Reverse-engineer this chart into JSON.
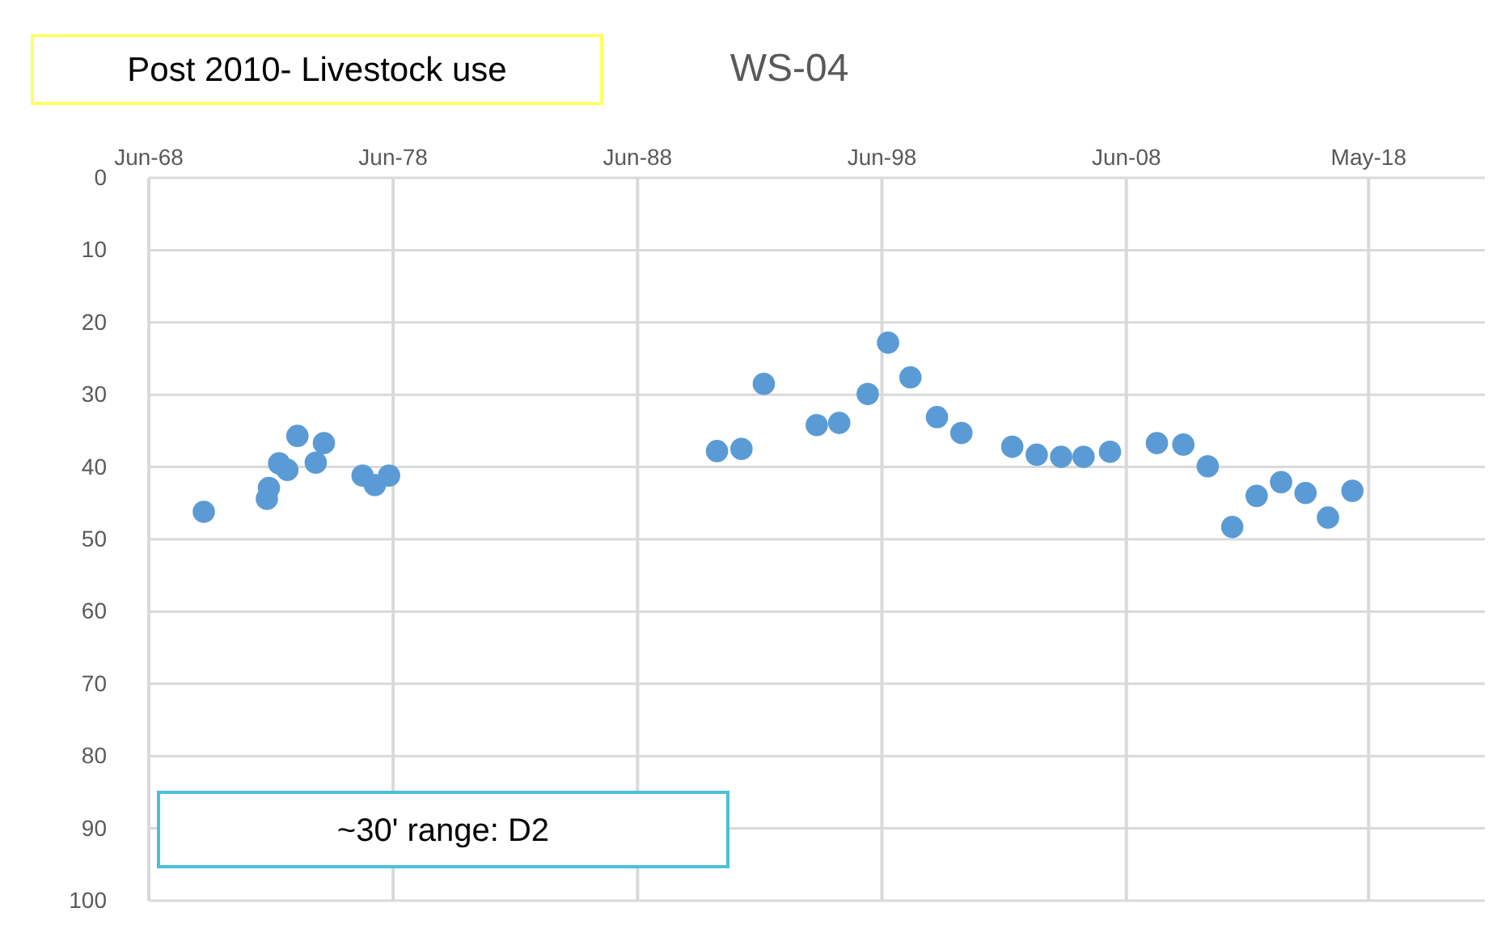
{
  "chart_data": {
    "type": "scatter",
    "title": "WS-04",
    "annotations": [
      "Post 2010- Livestock use",
      "~30' range: D2"
    ],
    "x": [
      "1970-09",
      "1973-04",
      "1973-05",
      "1973-10",
      "1974-02",
      "1974-07",
      "1975-04",
      "1975-08",
      "1977-03",
      "1977-09",
      "1978-04",
      "1991-09",
      "1992-09",
      "1993-08",
      "1995-10",
      "1996-09",
      "1997-11",
      "1998-09",
      "1999-08",
      "2000-09",
      "2001-09",
      "2003-10",
      "2004-10",
      "2005-10",
      "2006-09",
      "2007-10",
      "2009-09",
      "2010-10",
      "2011-10",
      "2012-10",
      "2013-10",
      "2014-10",
      "2015-10",
      "2016-09",
      "2017-09"
    ],
    "values": [
      46.2,
      44.4,
      42.9,
      39.5,
      40.4,
      35.7,
      39.4,
      36.7,
      41.2,
      42.5,
      41.2,
      37.8,
      37.5,
      28.5,
      34.2,
      33.9,
      29.9,
      22.8,
      27.6,
      33.1,
      35.3,
      37.2,
      38.3,
      38.6,
      38.6,
      37.9,
      36.7,
      36.9,
      39.9,
      48.3,
      44.0,
      42.1,
      43.6,
      47.0,
      43.3
    ],
    "color": "#5b9bd5",
    "marker": "circle",
    "xlim": [
      "1968-06",
      "2023-02"
    ],
    "xticks": [
      {
        "value": "1968-06",
        "label": "Jun-68"
      },
      {
        "value": "1978-06",
        "label": "Jun-78"
      },
      {
        "value": "1988-06",
        "label": "Jun-88"
      },
      {
        "value": "1998-06",
        "label": "Jun-98"
      },
      {
        "value": "2008-06",
        "label": "Jun-08"
      },
      {
        "value": "2018-05",
        "label": "May-18"
      }
    ],
    "ylim": [
      100,
      0
    ],
    "yticks": [
      0,
      10,
      20,
      30,
      40,
      50,
      60,
      70,
      80,
      90,
      100
    ],
    "grid": true
  }
}
